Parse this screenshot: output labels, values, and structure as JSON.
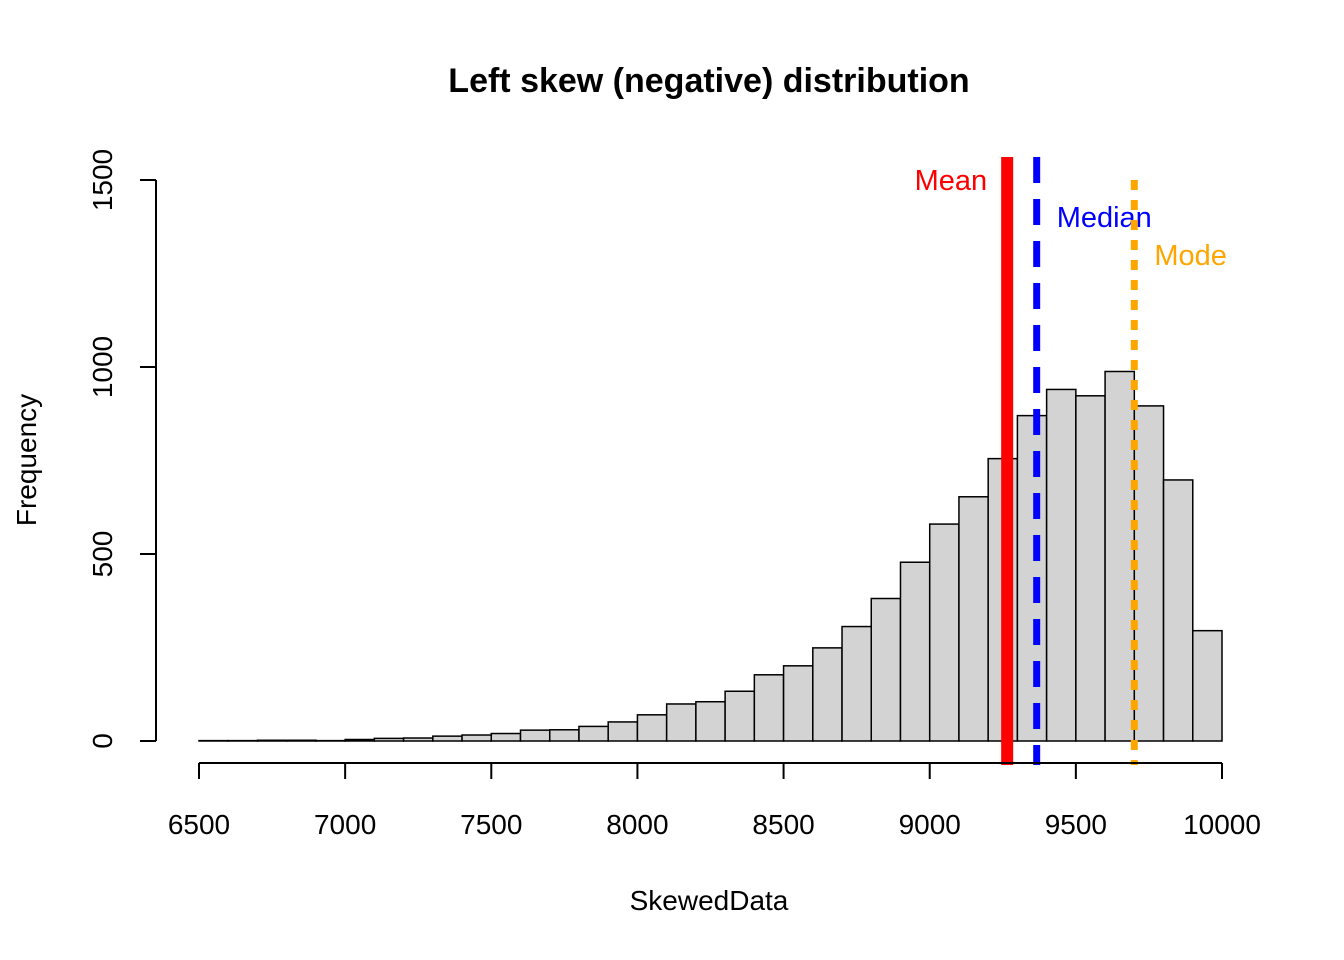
{
  "chart_data": {
    "type": "bar",
    "subtype": "histogram",
    "title": "Left skew (negative) distribution",
    "xlabel": "SkewedData",
    "ylabel": "Frequency",
    "xlim": [
      6500,
      10000
    ],
    "ylim": [
      0,
      1500
    ],
    "x_ticks": [
      6500,
      7000,
      7500,
      8000,
      8500,
      9000,
      9500,
      10000
    ],
    "y_ticks": [
      0,
      500,
      1000,
      1500
    ],
    "bar_color": "#d3d3d3",
    "bin_width": 100,
    "bins": [
      {
        "start": 6500,
        "end": 6600,
        "count": 1
      },
      {
        "start": 6600,
        "end": 6700,
        "count": 1
      },
      {
        "start": 6700,
        "end": 6800,
        "count": 2
      },
      {
        "start": 6800,
        "end": 6900,
        "count": 2
      },
      {
        "start": 6900,
        "end": 7000,
        "count": 1
      },
      {
        "start": 7000,
        "end": 7100,
        "count": 4
      },
      {
        "start": 7100,
        "end": 7200,
        "count": 7
      },
      {
        "start": 7200,
        "end": 7300,
        "count": 8
      },
      {
        "start": 7300,
        "end": 7400,
        "count": 13
      },
      {
        "start": 7400,
        "end": 7500,
        "count": 16
      },
      {
        "start": 7500,
        "end": 7600,
        "count": 20
      },
      {
        "start": 7600,
        "end": 7700,
        "count": 29
      },
      {
        "start": 7700,
        "end": 7800,
        "count": 30
      },
      {
        "start": 7800,
        "end": 7900,
        "count": 39
      },
      {
        "start": 7900,
        "end": 8000,
        "count": 51
      },
      {
        "start": 8000,
        "end": 8100,
        "count": 70
      },
      {
        "start": 8100,
        "end": 8200,
        "count": 99
      },
      {
        "start": 8200,
        "end": 8300,
        "count": 105
      },
      {
        "start": 8300,
        "end": 8400,
        "count": 133
      },
      {
        "start": 8400,
        "end": 8500,
        "count": 177
      },
      {
        "start": 8500,
        "end": 8600,
        "count": 201
      },
      {
        "start": 8600,
        "end": 8700,
        "count": 249
      },
      {
        "start": 8700,
        "end": 8800,
        "count": 306
      },
      {
        "start": 8800,
        "end": 8900,
        "count": 381
      },
      {
        "start": 8900,
        "end": 9000,
        "count": 478
      },
      {
        "start": 9000,
        "end": 9100,
        "count": 580
      },
      {
        "start": 9100,
        "end": 9200,
        "count": 653
      },
      {
        "start": 9200,
        "end": 9300,
        "count": 755
      },
      {
        "start": 9300,
        "end": 9400,
        "count": 870
      },
      {
        "start": 9400,
        "end": 9500,
        "count": 940
      },
      {
        "start": 9500,
        "end": 9600,
        "count": 923
      },
      {
        "start": 9600,
        "end": 9700,
        "count": 988
      },
      {
        "start": 9700,
        "end": 9800,
        "count": 896
      },
      {
        "start": 9800,
        "end": 9900,
        "count": 698
      },
      {
        "start": 9900,
        "end": 10000,
        "count": 295
      }
    ],
    "reference_lines": [
      {
        "name": "Mean",
        "label": "Mean",
        "x": 9265,
        "color": "#ff0000",
        "style": "solid"
      },
      {
        "name": "Median",
        "label": "Median",
        "x": 9366,
        "color": "#0000ff",
        "style": "dashed"
      },
      {
        "name": "Mode",
        "label": "Mode",
        "x": 9700,
        "color": "#ffa500",
        "style": "dotted"
      }
    ],
    "grid": false,
    "legend": "none"
  }
}
